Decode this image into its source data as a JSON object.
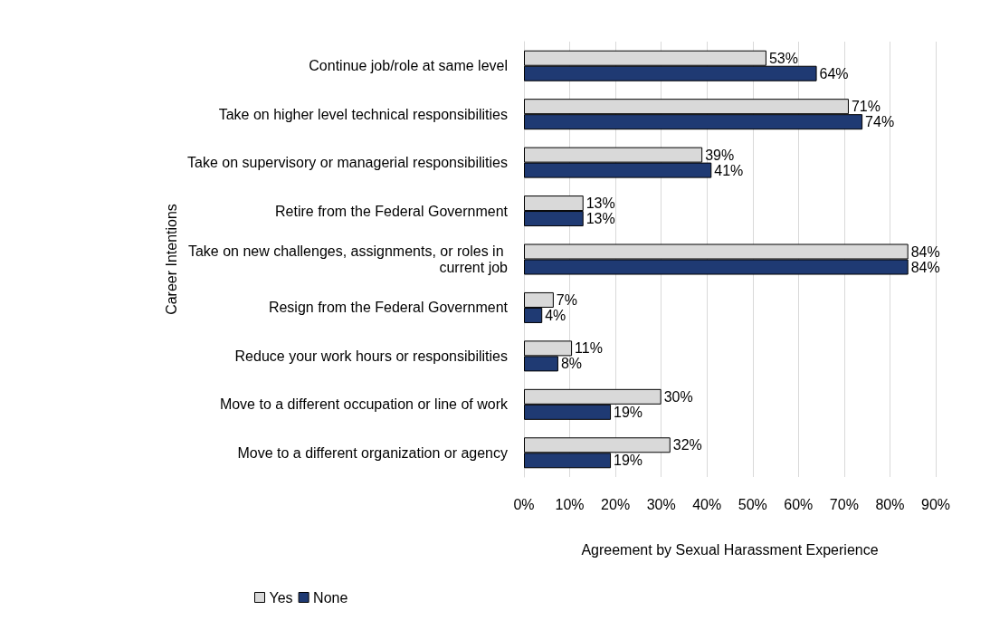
{
  "chart_data": {
    "type": "bar",
    "orientation": "horizontal",
    "xlabel": "Agreement by Sexual Harassment Experience",
    "ylabel": "Career Intentions",
    "categories": [
      "Continue job/role at same level",
      "Take on higher level technical responsibilities",
      "Take on supervisory or managerial responsibilities",
      "Retire from the Federal Government",
      "Take on new challenges, assignments, or roles in current job",
      "Resign from the Federal Government",
      "Reduce your work hours or responsibilities",
      "Move to a different occupation or line of work",
      "Move to a different organization or agency"
    ],
    "series": [
      {
        "name": "Yes",
        "color": "#d9d9d9",
        "values": [
          53,
          71,
          39,
          13,
          84,
          6.5,
          10.5,
          30,
          32
        ],
        "value_labels": [
          "53%",
          "71%",
          "39%",
          "13%",
          "84%",
          "7%",
          "11%",
          "30%",
          "32%"
        ]
      },
      {
        "name": "None",
        "color": "#1f3a73",
        "values": [
          64,
          74,
          41,
          13,
          84,
          4,
          7.5,
          19,
          19
        ],
        "value_labels": [
          "64%",
          "74%",
          "41%",
          "13%",
          "84%",
          "4%",
          "8%",
          "19%",
          "19%"
        ]
      }
    ],
    "xlim": [
      0,
      90
    ],
    "xticks": [
      {
        "value": 0,
        "label": "0%"
      },
      {
        "value": 10,
        "label": "10%"
      },
      {
        "value": 20,
        "label": "20%"
      },
      {
        "value": 30,
        "label": "30%"
      },
      {
        "value": 40,
        "label": "40%"
      },
      {
        "value": 50,
        "label": "50%"
      },
      {
        "value": 60,
        "label": "60%"
      },
      {
        "value": 70,
        "label": "70%"
      },
      {
        "value": 80,
        "label": "80%"
      },
      {
        "value": 90,
        "label": "90%"
      }
    ],
    "grid": "x",
    "legend": "bottom left"
  }
}
